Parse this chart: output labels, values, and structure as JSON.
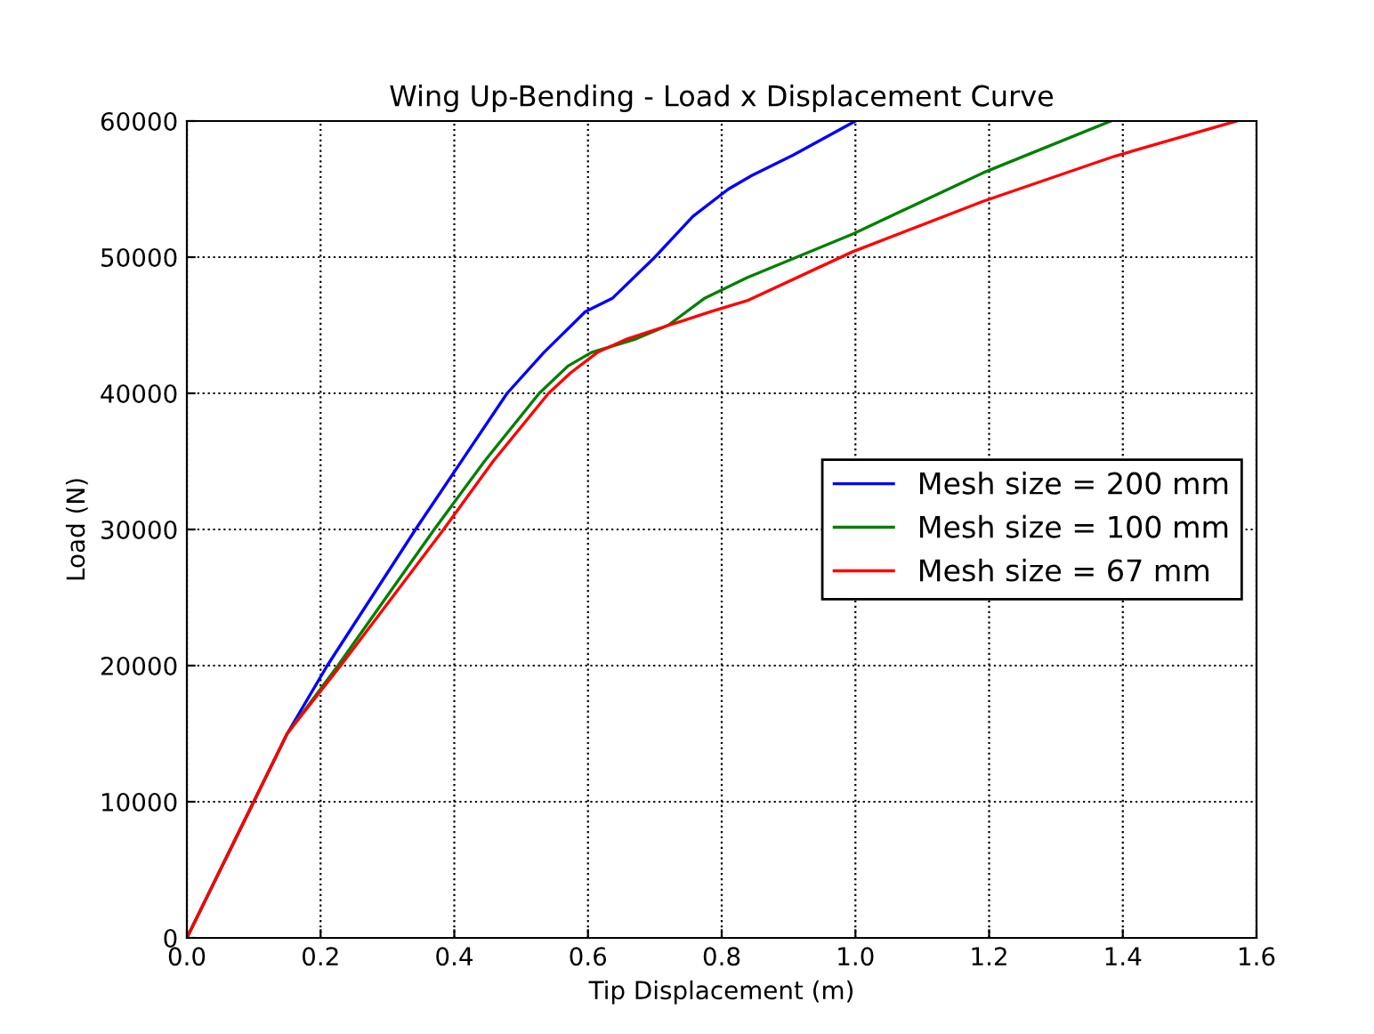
{
  "chart_data": {
    "type": "line",
    "title": "Wing Up-Bending - Load x Displacement Curve",
    "xlabel": "Tip Displacement (m)",
    "ylabel": "Load (N)",
    "xlim": [
      0,
      1.6
    ],
    "ylim": [
      0,
      60000
    ],
    "xticks": [
      {
        "value": 0,
        "label": "0.0"
      },
      0.2,
      0.4,
      0.6,
      0.8,
      {
        "value": 1.0,
        "label": "1.0"
      },
      1.2,
      1.4,
      1.6
    ],
    "yticks": [
      0,
      10000,
      20000,
      30000,
      40000,
      50000,
      60000
    ],
    "grid": true,
    "legend": "center right",
    "marker": "none",
    "line_style": "solid",
    "series": [
      {
        "name": "Mesh size = 200 mm",
        "color": "#0000ff",
        "x": [
          0,
          0.1,
          0.15,
          0.21,
          0.342,
          0.479,
          0.534,
          0.596,
          0.637,
          0.7,
          0.757,
          0.81,
          0.845,
          0.907,
          1.0
        ],
        "values": [
          0,
          10000,
          15000,
          20000,
          30000,
          40000,
          43000,
          46000,
          47000,
          50000,
          53000,
          55000,
          56000,
          57500,
          60000
        ]
      },
      {
        "name": "Mesh size = 100 mm",
        "color": "#008000",
        "x": [
          0,
          0.1,
          0.15,
          0.226,
          0.37,
          0.445,
          0.527,
          0.57,
          0.605,
          0.672,
          0.72,
          0.775,
          0.838,
          0.996,
          1.191,
          1.382
        ],
        "values": [
          0,
          10000,
          15000,
          20000,
          30000,
          35000,
          40000,
          42000,
          43000,
          44000,
          45000,
          47000,
          48500,
          51700,
          56200,
          60000
        ]
      },
      {
        "name": "Mesh size = 67 mm",
        "color": "#ff0000",
        "x": [
          0,
          0.1,
          0.15,
          0.23,
          0.384,
          0.458,
          0.541,
          0.574,
          0.614,
          0.659,
          0.721,
          0.784,
          0.838,
          0.996,
          1.191,
          1.387,
          1.57
        ],
        "values": [
          0,
          10000,
          15000,
          20000,
          30000,
          35000,
          40000,
          41500,
          43000,
          44000,
          45000,
          46000,
          46800,
          50400,
          54100,
          57400,
          60000
        ]
      }
    ]
  }
}
